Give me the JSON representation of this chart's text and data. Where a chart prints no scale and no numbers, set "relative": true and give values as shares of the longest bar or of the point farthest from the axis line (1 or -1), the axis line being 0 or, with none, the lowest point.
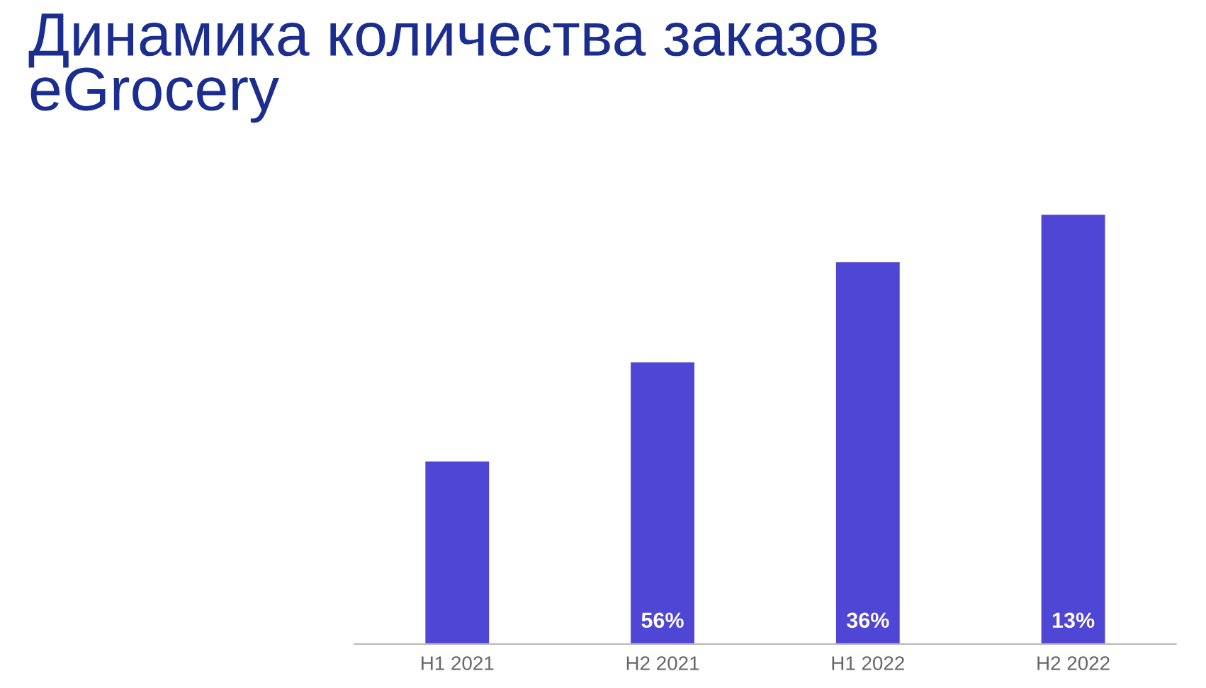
{
  "chart_data": {
    "type": "bar",
    "title": "Динамика количества заказов\neGrocery",
    "categories": [
      "H1 2021",
      "H2 2021",
      "H1 2022",
      "H2 2022"
    ],
    "values": [
      0.425,
      0.656,
      0.89,
      1.0
    ],
    "annotations": [
      {
        "text": "56%",
        "x": "H2 2021",
        "y": 0
      },
      {
        "text": "36%",
        "x": "H1 2022",
        "y": 0
      },
      {
        "text": "13%",
        "x": "H2 2022",
        "y": 0
      }
    ],
    "color": "#5046d5",
    "relative": true,
    "grid": false,
    "legend": false
  }
}
